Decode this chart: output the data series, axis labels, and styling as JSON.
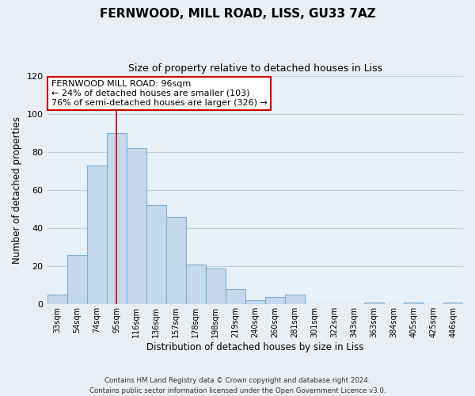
{
  "title": "FERNWOOD, MILL ROAD, LISS, GU33 7AZ",
  "subtitle": "Size of property relative to detached houses in Liss",
  "xlabel": "Distribution of detached houses by size in Liss",
  "ylabel": "Number of detached properties",
  "bar_labels": [
    "33sqm",
    "54sqm",
    "74sqm",
    "95sqm",
    "116sqm",
    "136sqm",
    "157sqm",
    "178sqm",
    "198sqm",
    "219sqm",
    "240sqm",
    "260sqm",
    "281sqm",
    "301sqm",
    "322sqm",
    "343sqm",
    "363sqm",
    "384sqm",
    "405sqm",
    "425sqm",
    "446sqm"
  ],
  "bar_values": [
    5,
    26,
    73,
    90,
    82,
    52,
    46,
    21,
    19,
    8,
    2,
    4,
    5,
    0,
    0,
    0,
    1,
    0,
    1,
    0,
    1
  ],
  "bar_color": "#c6d9ec",
  "bar_edge_color": "#7bafd4",
  "vline_x_index": 3,
  "vline_color": "#cc0000",
  "ylim": [
    0,
    120
  ],
  "yticks": [
    0,
    20,
    40,
    60,
    80,
    100,
    120
  ],
  "annotation_title": "FERNWOOD MILL ROAD: 96sqm",
  "annotation_line1": "← 24% of detached houses are smaller (103)",
  "annotation_line2": "76% of semi-detached houses are larger (326) →",
  "annotation_box_facecolor": "#ffffff",
  "annotation_box_edgecolor": "#cc0000",
  "footer1": "Contains HM Land Registry data © Crown copyright and database right 2024.",
  "footer2": "Contains public sector information licensed under the Open Government Licence v3.0.",
  "fig_facecolor": "#e8eef4",
  "plot_facecolor": "#e8f0f8",
  "grid_color": "#c0cfe0"
}
